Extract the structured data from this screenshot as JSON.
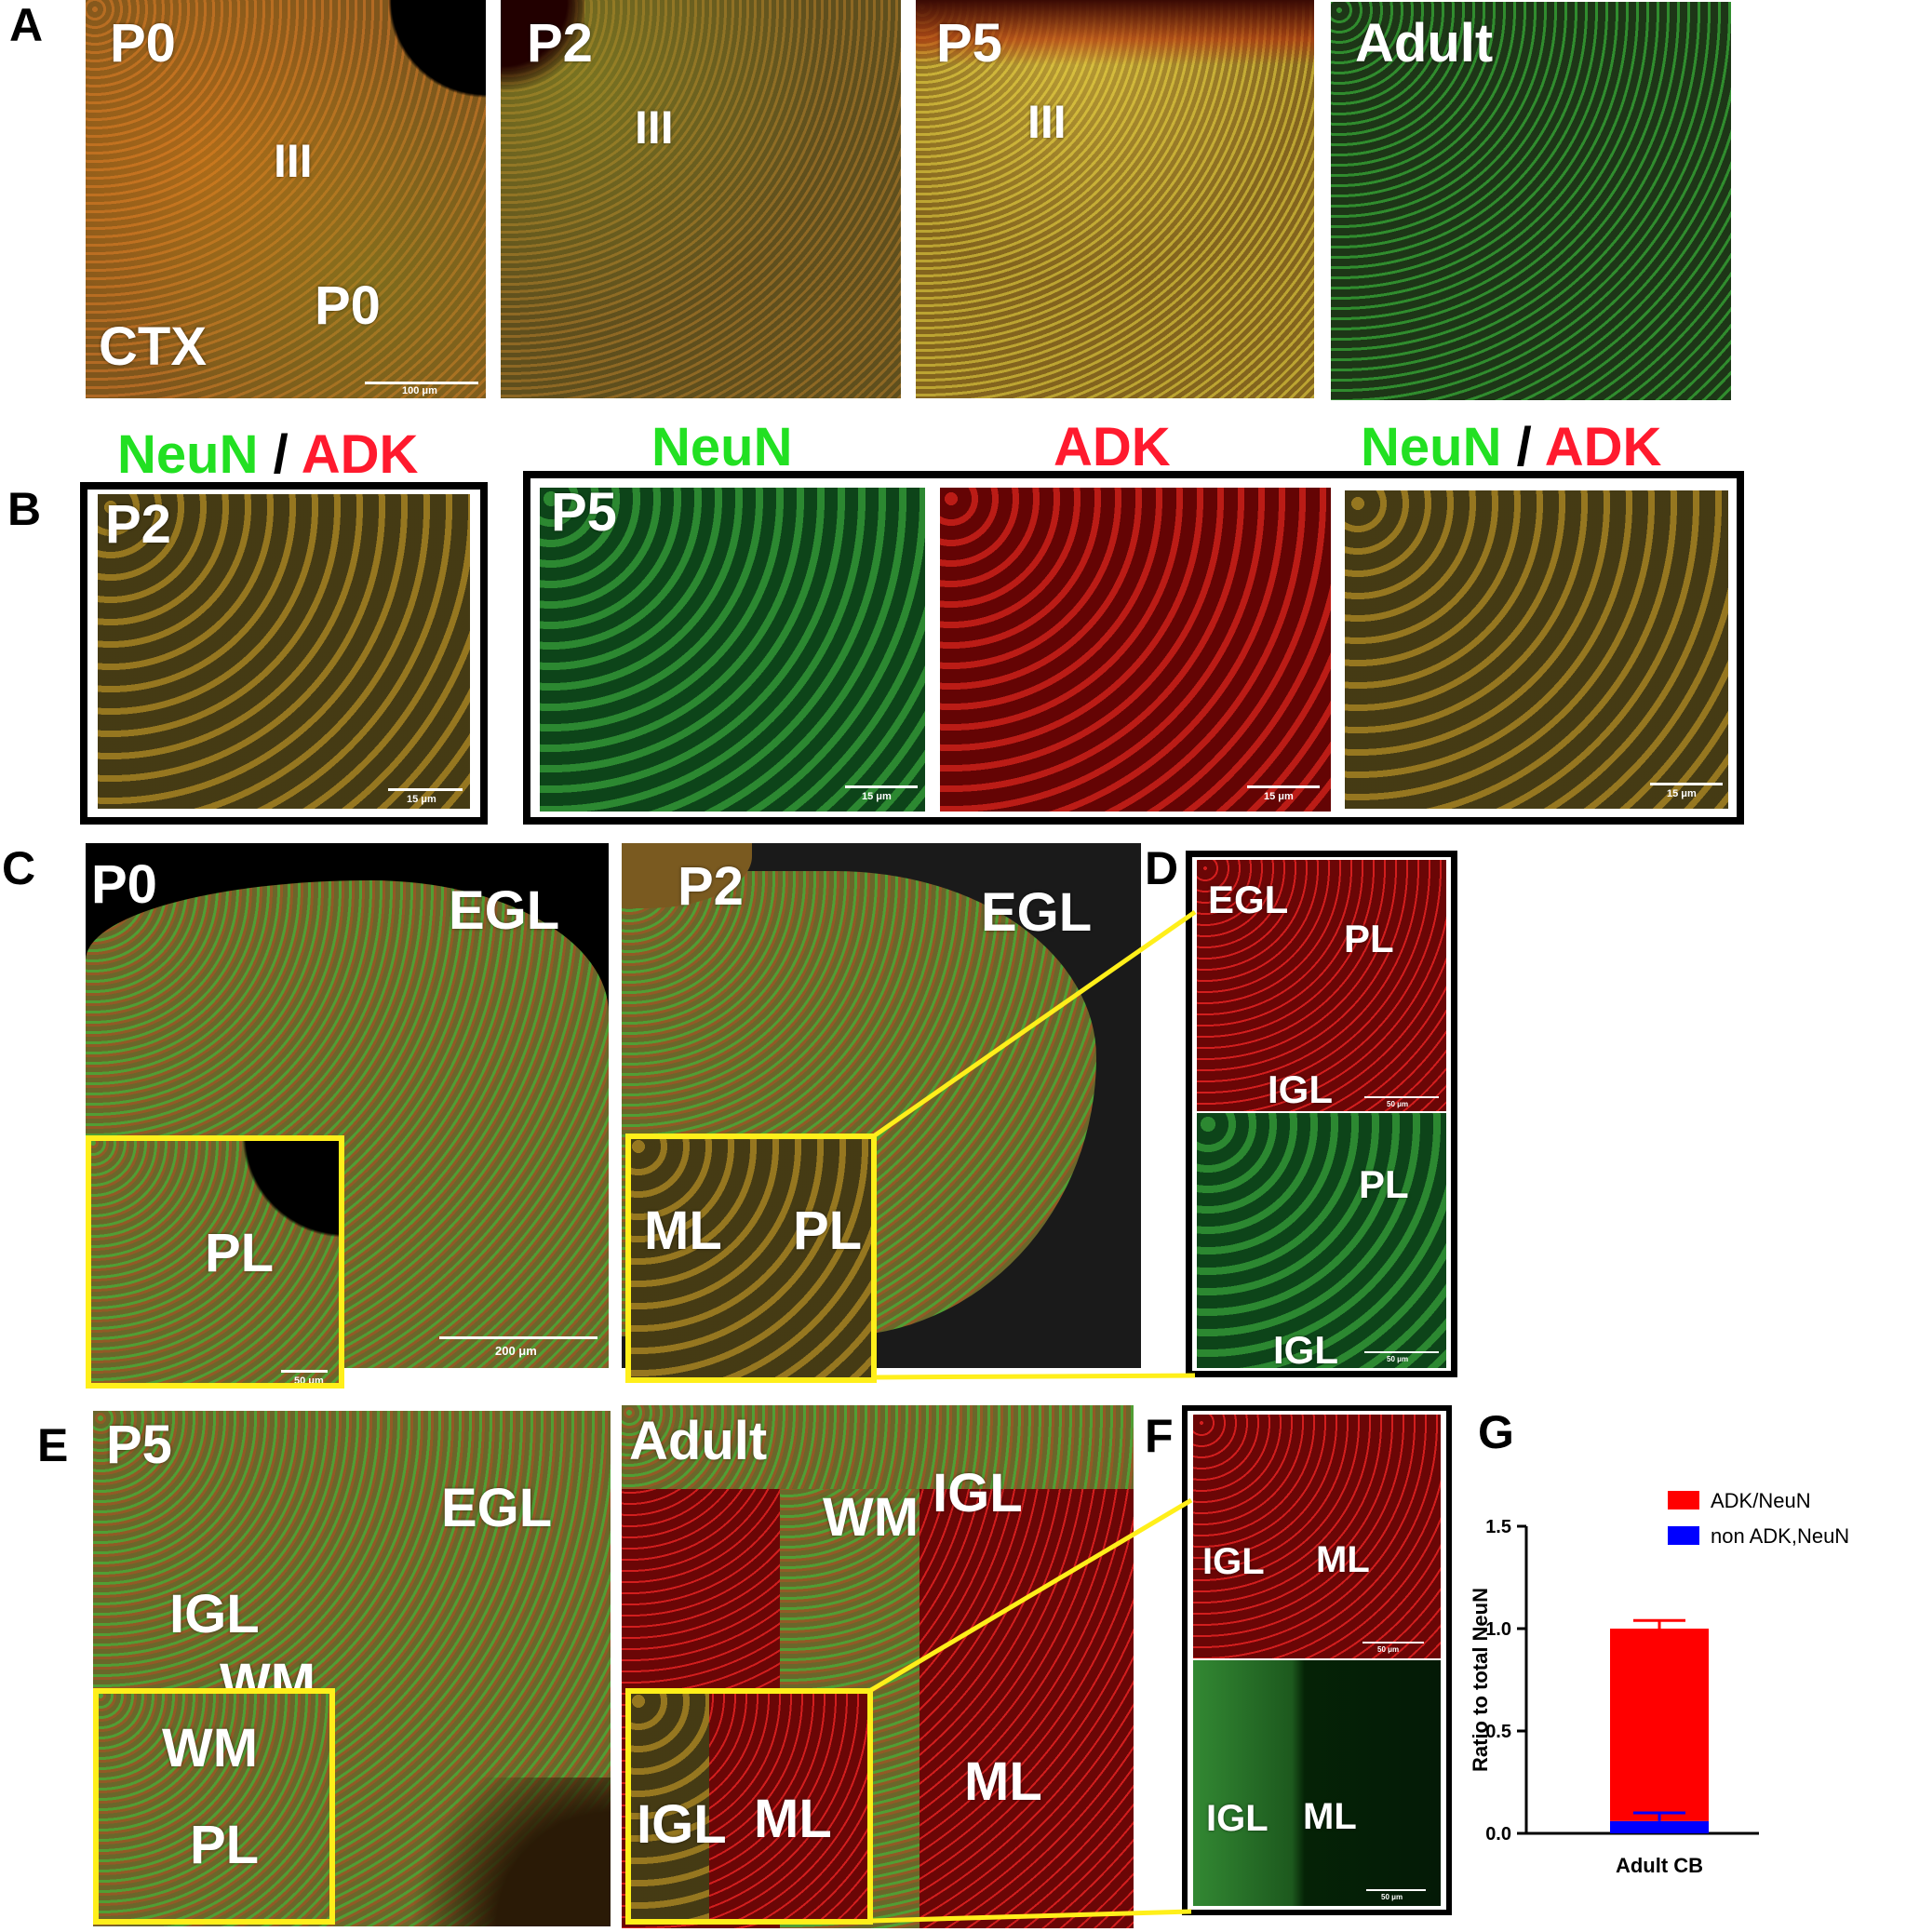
{
  "panel_letters": {
    "A": "A",
    "B": "B",
    "C": "C",
    "D": "D",
    "E": "E",
    "F": "F",
    "G": "G"
  },
  "panel_a": {
    "ages": [
      "P0",
      "P2",
      "P5",
      "Adult"
    ],
    "layer_iii": "III",
    "ctx": "CTX",
    "p0_inner": "P0",
    "scale": "100 μm"
  },
  "panel_b": {
    "neun": "NeuN",
    "slash": "/",
    "adk": "ADK",
    "age_p2": "P2",
    "age_p5": "P5",
    "scale": "15 μm"
  },
  "panel_c": {
    "p0": "P0",
    "p2": "P2",
    "egl": "EGL",
    "pl": "PL",
    "ml": "ML",
    "scale_200": "200 μm",
    "scale_50": "50 μm"
  },
  "panel_d": {
    "egl": "EGL",
    "pl": "PL",
    "igl": "IGL",
    "scale": "50 μm"
  },
  "panel_e": {
    "p5": "P5",
    "adult": "Adult",
    "egl": "EGL",
    "igl": "IGL",
    "wm": "WM",
    "pl": "PL",
    "ml": "ML"
  },
  "panel_f": {
    "igl": "IGL",
    "ml": "ML",
    "scale": "50 μm"
  },
  "chart_data": {
    "type": "bar",
    "stacked": true,
    "categories": [
      "Adult CB"
    ],
    "series": [
      {
        "name": "ADK/NeuN",
        "values": [
          0.94
        ],
        "color": "#ff0000"
      },
      {
        "name": "non ADK,NeuN",
        "values": [
          0.06
        ],
        "color": "#0000ff"
      }
    ],
    "error_top": 0.04,
    "error_bottom": 0.04,
    "ylabel": "Ratio to total NeuN",
    "xlabel": "",
    "ylim": [
      0,
      1.5
    ],
    "yticks": [
      "0.0",
      "0.5",
      "1.0",
      "1.5"
    ],
    "legend": "top-right"
  }
}
